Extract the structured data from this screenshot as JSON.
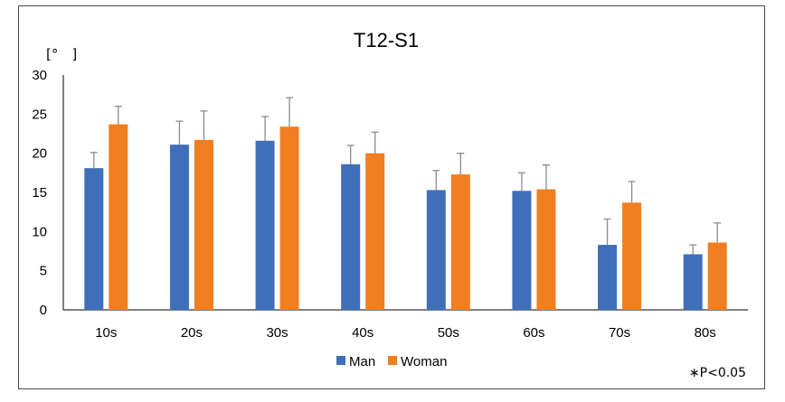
{
  "chart_data": {
    "type": "bar",
    "title": "T12-S1",
    "ylabel": "[° ]",
    "xlabel": "",
    "categories": [
      "10s",
      "20s",
      "30s",
      "40s",
      "50s",
      "60s",
      "70s",
      "80s"
    ],
    "ylim": [
      0,
      30
    ],
    "yticks": [
      0,
      5,
      10,
      15,
      20,
      25,
      30
    ],
    "grid": false,
    "legend_position": "bottom",
    "series": [
      {
        "name": "Man",
        "color": "#3F6FB8",
        "values": [
          18.1,
          21.1,
          21.6,
          18.6,
          15.3,
          15.2,
          8.3,
          7.1
        ],
        "errors": [
          2.0,
          3.0,
          3.1,
          2.4,
          2.5,
          2.3,
          3.3,
          1.2
        ]
      },
      {
        "name": "Woman",
        "color": "#F07F21",
        "values": [
          23.7,
          21.7,
          23.4,
          20.0,
          17.3,
          15.4,
          13.7,
          8.6
        ],
        "errors": [
          2.3,
          3.7,
          3.7,
          2.7,
          2.7,
          3.1,
          2.7,
          2.5
        ]
      }
    ],
    "error_bar_color": "#8C8C8C",
    "annotations": [
      "∗P<0.05"
    ]
  }
}
